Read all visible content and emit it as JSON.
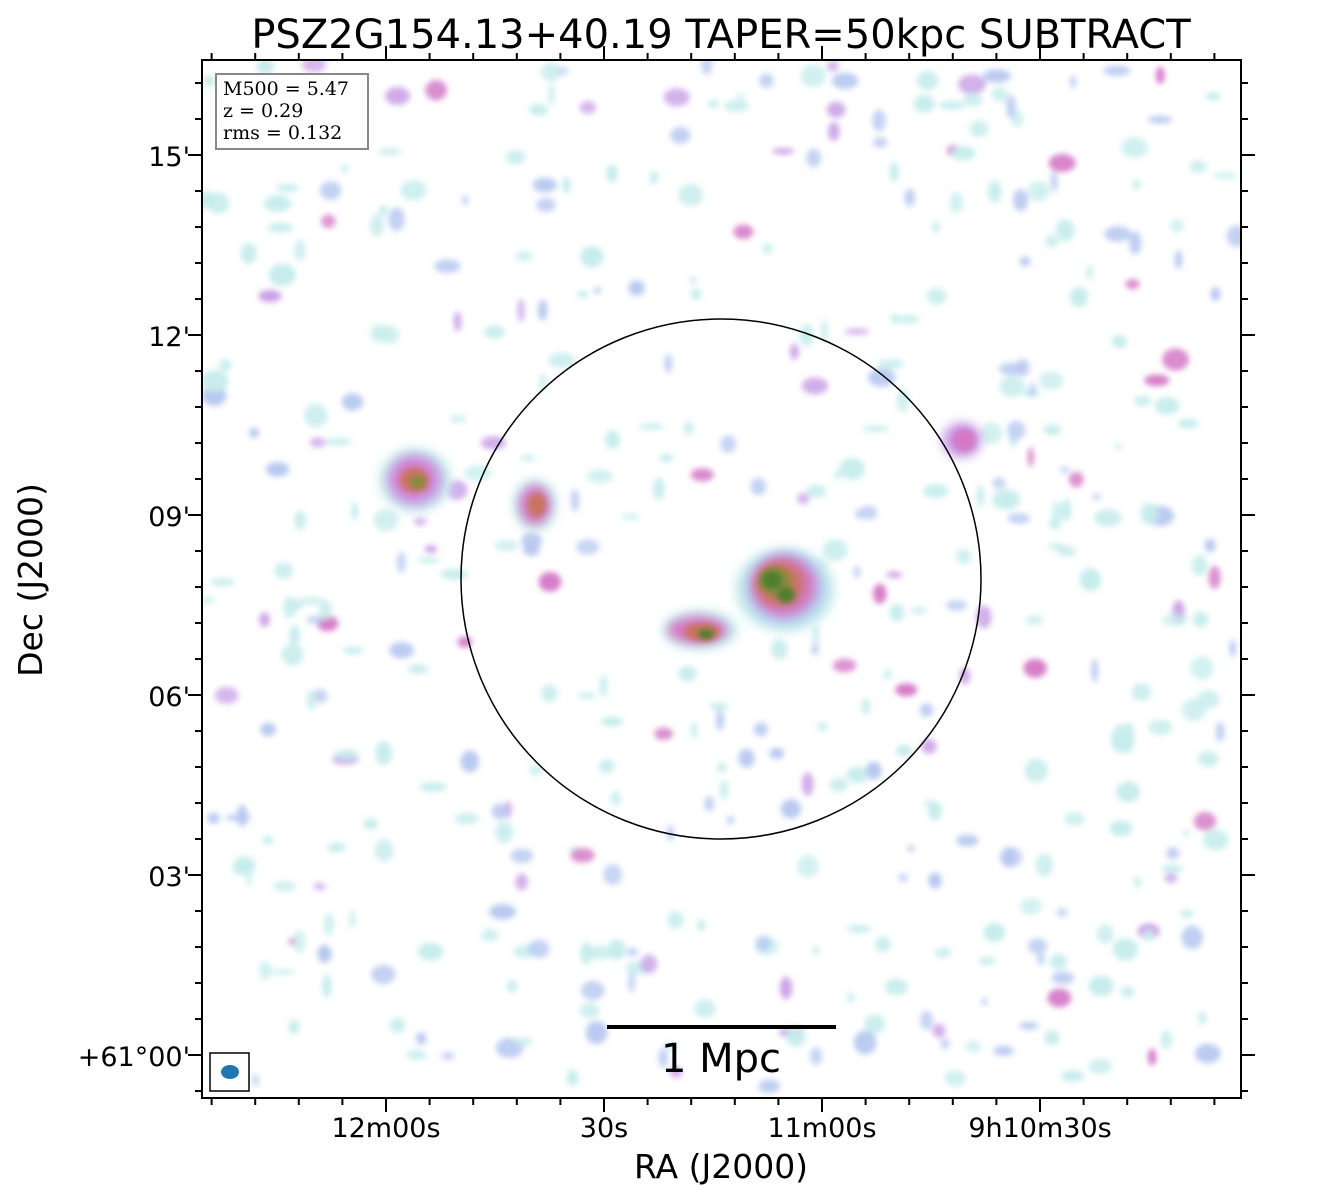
{
  "figure": {
    "title": "PSZ2G154.13+40.19 TAPER=50kpc SUBTRACT",
    "xlabel": "RA (J2000)",
    "ylabel": "Dec (J2000)",
    "x_ticks": [
      "12m00s",
      "30s",
      "11m00s",
      "9h10m30s"
    ],
    "y_ticks": [
      "15'",
      "12'",
      "09'",
      "06'",
      "03'",
      "+61°00'"
    ],
    "info_box": {
      "line1": "M500 = 5.47",
      "line2": "z = 0.29",
      "line3": "rms = 0.132"
    },
    "scale_bar": {
      "label": "1 Mpc"
    },
    "beam_color": "#1f77b4",
    "circle_color": "#000000",
    "colormap": [
      "#c6ecec",
      "#b7c8f0",
      "#c9a0e6",
      "#d479c6",
      "#c97560",
      "#8a8a3c",
      "#4e7f2e"
    ]
  }
}
